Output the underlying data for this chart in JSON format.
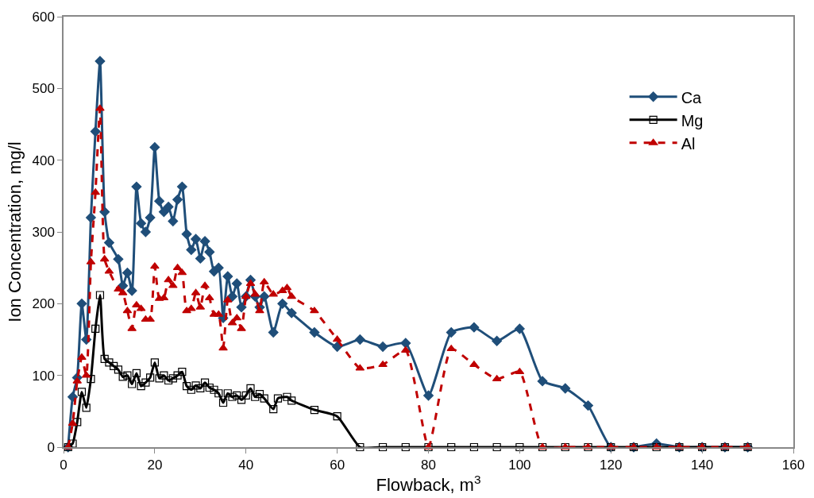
{
  "chart_data": {
    "type": "line",
    "xlabel": "Flowback, m$^{3}$",
    "ylabel": "Ion Concentration, mg/l",
    "xlim": [
      0,
      160
    ],
    "xticks": [
      0,
      20,
      40,
      60,
      80,
      100,
      120,
      140,
      160
    ],
    "ylim": [
      0,
      600
    ],
    "yticks": [
      0,
      100,
      200,
      300,
      400,
      500,
      600
    ],
    "legend": "top right",
    "series": [
      {
        "name": "Ca",
        "color": "#1f4e79",
        "marker": "diamond",
        "line_style": "solid",
        "x": [
          1,
          2,
          3,
          4,
          5,
          6,
          7,
          8,
          9,
          10,
          12,
          13,
          14,
          15,
          16,
          17,
          18,
          19,
          20,
          21,
          22,
          23,
          24,
          25,
          26,
          27,
          28,
          29,
          30,
          31,
          32,
          33,
          34,
          35,
          36,
          37,
          38,
          39,
          40,
          41,
          42,
          43,
          44,
          46,
          48,
          50,
          55,
          60,
          65,
          70,
          75,
          80,
          85,
          90,
          95,
          100,
          105,
          110,
          115,
          120,
          125,
          130,
          135,
          140,
          145,
          150
        ],
        "values": [
          0,
          70,
          97,
          200,
          150,
          320,
          440,
          538,
          328,
          285,
          262,
          225,
          243,
          218,
          363,
          312,
          300,
          320,
          418,
          343,
          328,
          335,
          315,
          345,
          363,
          297,
          275,
          290,
          263,
          287,
          272,
          245,
          250,
          180,
          238,
          210,
          228,
          195,
          210,
          233,
          210,
          195,
          210,
          160,
          200,
          187,
          160,
          140,
          150,
          140,
          145,
          72,
          160,
          167,
          148,
          165,
          92,
          82,
          58,
          0,
          0,
          5,
          0,
          0,
          0,
          0
        ]
      },
      {
        "name": "Mg",
        "color": "#000000",
        "marker": "square-open",
        "line_style": "solid",
        "x": [
          1,
          2,
          3,
          4,
          5,
          6,
          7,
          8,
          9,
          10,
          11,
          12,
          13,
          14,
          15,
          16,
          17,
          18,
          19,
          20,
          21,
          22,
          23,
          24,
          25,
          26,
          27,
          28,
          29,
          30,
          31,
          32,
          33,
          34,
          35,
          36,
          37,
          38,
          39,
          40,
          41,
          42,
          43,
          44,
          46,
          47,
          49,
          50,
          55,
          60,
          65,
          70,
          75,
          80,
          85,
          90,
          95,
          100,
          105,
          110,
          115,
          120,
          125,
          130,
          135,
          140,
          145,
          150
        ],
        "values": [
          0,
          5,
          35,
          77,
          55,
          95,
          165,
          212,
          123,
          118,
          113,
          108,
          98,
          100,
          88,
          103,
          85,
          90,
          97,
          118,
          96,
          100,
          93,
          96,
          100,
          105,
          85,
          80,
          86,
          82,
          90,
          83,
          80,
          75,
          62,
          75,
          70,
          72,
          66,
          72,
          82,
          70,
          74,
          68,
          53,
          68,
          70,
          65,
          52,
          43,
          0,
          0,
          0,
          0,
          0,
          0,
          0,
          0,
          0,
          0,
          0,
          0,
          0,
          0,
          0,
          0,
          0,
          0
        ]
      },
      {
        "name": "Al",
        "color": "#c00000",
        "marker": "triangle",
        "line_style": "dashed",
        "x": [
          1,
          2,
          3,
          4,
          5,
          6,
          7,
          8,
          9,
          10,
          12,
          13,
          14,
          15,
          16,
          17,
          18,
          19,
          20,
          21,
          22,
          23,
          24,
          25,
          26,
          27,
          28,
          29,
          30,
          31,
          32,
          33,
          34,
          35,
          36,
          37,
          38,
          39,
          40,
          41,
          42,
          43,
          44,
          46,
          48,
          49,
          50,
          55,
          60,
          65,
          70,
          75,
          80,
          85,
          90,
          95,
          100,
          105,
          110,
          115,
          120,
          125,
          130,
          135,
          140,
          145,
          150
        ],
        "values": [
          0,
          33,
          92,
          125,
          100,
          258,
          355,
          472,
          262,
          245,
          220,
          215,
          190,
          165,
          198,
          193,
          178,
          178,
          252,
          207,
          208,
          233,
          225,
          250,
          243,
          190,
          193,
          215,
          195,
          225,
          208,
          185,
          185,
          138,
          205,
          173,
          180,
          165,
          210,
          228,
          213,
          190,
          230,
          213,
          218,
          222,
          210,
          190,
          150,
          110,
          115,
          135,
          0,
          137,
          115,
          95,
          105,
          0,
          0,
          0,
          0,
          0,
          0,
          0,
          0,
          0,
          0
        ]
      }
    ]
  }
}
